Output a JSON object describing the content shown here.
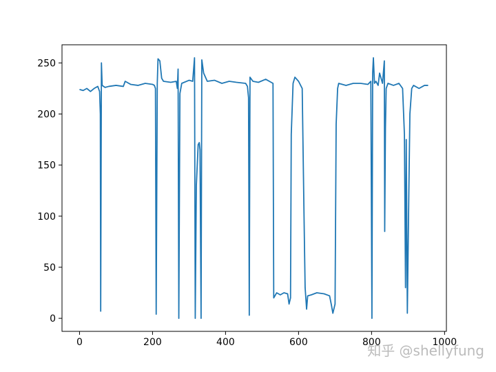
{
  "chart_data": {
    "type": "line",
    "color": "#1f77b4",
    "watermark": "知乎 @shellyfung",
    "xlim": [
      -48,
      1005
    ],
    "ylim": [
      -12.75,
      267.75
    ],
    "xticks": [
      0,
      200,
      400,
      600,
      800,
      1000
    ],
    "yticks": [
      0,
      50,
      100,
      150,
      200,
      250
    ],
    "x": [
      0,
      10,
      20,
      30,
      40,
      50,
      55,
      57,
      58,
      60,
      62,
      70,
      80,
      100,
      120,
      125,
      140,
      160,
      180,
      200,
      205,
      208,
      210,
      213,
      215,
      220,
      225,
      230,
      250,
      265,
      268,
      270,
      272,
      275,
      280,
      300,
      310,
      315,
      317,
      320,
      325,
      328,
      330,
      333,
      335,
      340,
      350,
      370,
      390,
      410,
      430,
      455,
      460,
      463,
      465,
      467,
      475,
      490,
      510,
      525,
      530,
      532,
      540,
      550,
      560,
      570,
      574,
      578,
      580,
      585,
      590,
      600,
      610,
      615,
      618,
      622,
      625,
      635,
      650,
      670,
      685,
      690,
      694,
      700,
      703,
      707,
      710,
      730,
      750,
      770,
      790,
      798,
      801,
      803,
      805,
      808,
      812,
      818,
      822,
      830,
      835,
      836,
      838,
      840,
      845,
      860,
      875,
      885,
      890,
      893,
      895,
      898,
      902,
      905,
      910,
      915,
      930,
      945,
      955
    ],
    "values": [
      224,
      223,
      225,
      222,
      225,
      227,
      222,
      200,
      7,
      250,
      228,
      226,
      227,
      228,
      227,
      232,
      229,
      228,
      230,
      229,
      228,
      225,
      4,
      230,
      254,
      252,
      235,
      232,
      231,
      232,
      225,
      244,
      0,
      220,
      230,
      233,
      232,
      255,
      0,
      130,
      170,
      172,
      165,
      0,
      253,
      240,
      232,
      233,
      230,
      232,
      231,
      230,
      227,
      216,
      3,
      236,
      232,
      231,
      234,
      231,
      230,
      20,
      25,
      23,
      25,
      24,
      14,
      20,
      180,
      230,
      236,
      232,
      225,
      100,
      30,
      9,
      22,
      23,
      25,
      24,
      22,
      13,
      5,
      14,
      190,
      225,
      230,
      228,
      230,
      230,
      229,
      232,
      0,
      240,
      255,
      230,
      232,
      228,
      240,
      230,
      252,
      85,
      186,
      225,
      230,
      228,
      230,
      225,
      180,
      30,
      175,
      5,
      120,
      200,
      225,
      228,
      225,
      228,
      228
    ]
  }
}
